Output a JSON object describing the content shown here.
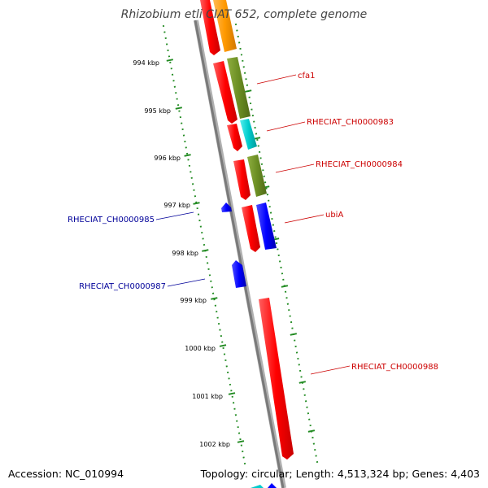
{
  "title": "Rhizobium etli CIAT 652, complete genome",
  "accession": "Accession: NC_010994",
  "summary": "Topology: circular; Length: 4,513,324 bp; Genes: 4,403",
  "colors": {
    "backbone": "#808080",
    "forward_gene": "#ff0000",
    "reverse_gene": "#0000ff",
    "scale_ticks": "#228b22",
    "forward_label": "#cc0000",
    "reverse_label": "#000099",
    "orange": "#ff9900",
    "olive": "#6b8e23",
    "cyan": "#00cccc"
  },
  "scale_labels": [
    "994 kbp",
    "995 kbp",
    "996 kbp",
    "997 kbp",
    "998 kbp",
    "999 kbp",
    "1000 kbp",
    "1001 kbp",
    "1002 kbp"
  ],
  "gene_labels": {
    "cfa1": "cfa1",
    "rheciat_ch0000983": "RHECIAT_CH0000983",
    "rheciat_ch0000984": "RHECIAT_CH0000984",
    "ubia": "ubiA",
    "rheciat_ch0000985": "RHECIAT_CH0000985",
    "rheciat_ch0000987": "RHECIAT_CH0000987",
    "rheciat_ch0000988": "RHECIAT_CH0000988"
  }
}
